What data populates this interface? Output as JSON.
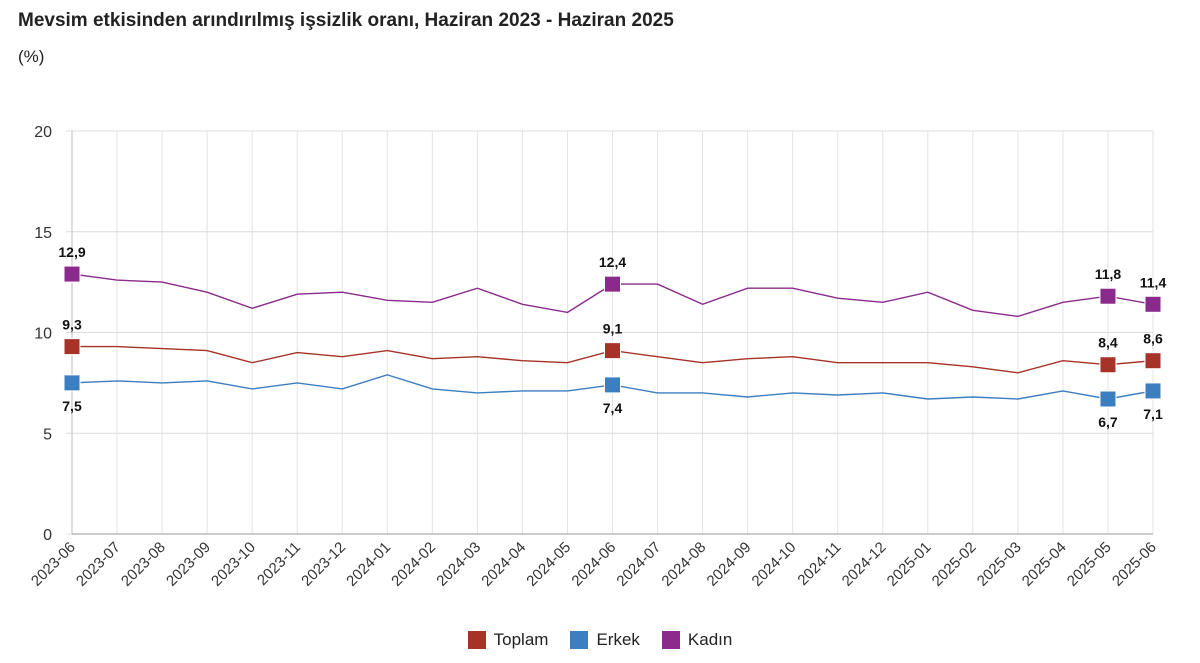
{
  "chart_data": {
    "type": "line",
    "title": "Mevsim etkisinden arındırılmış işsizlik oranı, Haziran 2023 - Haziran 2025",
    "subtitle": "(%)",
    "xlabel": "",
    "ylabel": "",
    "ylim": [
      0,
      20
    ],
    "yticks": [
      0,
      5,
      10,
      15,
      20
    ],
    "grid": true,
    "legend_position": "bottom",
    "categories": [
      "2023-06",
      "2023-07",
      "2023-08",
      "2023-09",
      "2023-10",
      "2023-11",
      "2023-12",
      "2024-01",
      "2024-02",
      "2024-03",
      "2024-04",
      "2024-05",
      "2024-06",
      "2024-07",
      "2024-08",
      "2024-09",
      "2024-10",
      "2024-11",
      "2024-12",
      "2025-01",
      "2025-02",
      "2025-03",
      "2025-04",
      "2025-05",
      "2025-06"
    ],
    "series": [
      {
        "name": "Toplam",
        "color": "#a63228",
        "values": [
          9.3,
          9.3,
          9.2,
          9.1,
          8.5,
          9.0,
          8.8,
          9.1,
          8.7,
          8.8,
          8.6,
          8.5,
          9.1,
          8.8,
          8.5,
          8.7,
          8.8,
          8.5,
          8.5,
          8.5,
          8.3,
          8.0,
          8.6,
          8.4,
          8.6
        ],
        "labeled_points": [
          {
            "index": 0,
            "label": "9,3",
            "pos": "above"
          },
          {
            "index": 12,
            "label": "9,1",
            "pos": "above"
          },
          {
            "index": 23,
            "label": "8,4",
            "pos": "above"
          },
          {
            "index": 24,
            "label": "8,6",
            "pos": "above"
          }
        ]
      },
      {
        "name": "Erkek",
        "color": "#3c7fc0",
        "values": [
          7.5,
          7.6,
          7.5,
          7.6,
          7.2,
          7.5,
          7.2,
          7.9,
          7.2,
          7.0,
          7.1,
          7.1,
          7.4,
          7.0,
          7.0,
          6.8,
          7.0,
          6.9,
          7.0,
          6.7,
          6.8,
          6.7,
          7.1,
          6.7,
          7.1
        ],
        "labeled_points": [
          {
            "index": 0,
            "label": "7,5",
            "pos": "below"
          },
          {
            "index": 12,
            "label": "7,4",
            "pos": "below"
          },
          {
            "index": 23,
            "label": "6,7",
            "pos": "below"
          },
          {
            "index": 24,
            "label": "7,1",
            "pos": "below"
          }
        ]
      },
      {
        "name": "Kadın",
        "color": "#8a2a8c",
        "values": [
          12.9,
          12.6,
          12.5,
          12.0,
          11.2,
          11.9,
          12.0,
          11.6,
          11.5,
          12.2,
          11.4,
          11.0,
          12.4,
          12.4,
          11.4,
          12.2,
          12.2,
          11.7,
          11.5,
          12.0,
          11.1,
          10.8,
          11.5,
          11.8,
          11.4
        ],
        "labeled_points": [
          {
            "index": 0,
            "label": "12,9",
            "pos": "above"
          },
          {
            "index": 12,
            "label": "12,4",
            "pos": "above"
          },
          {
            "index": 23,
            "label": "11,8",
            "pos": "above"
          },
          {
            "index": 24,
            "label": "11,4",
            "pos": "above"
          }
        ]
      }
    ]
  }
}
